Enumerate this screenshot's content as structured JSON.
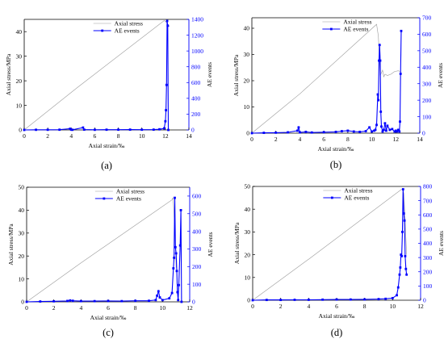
{
  "colors": {
    "axis_left": "#000000",
    "axis_right": "#0000ff",
    "stress_line": "#9a9a9a",
    "ae_series": "#0000ff"
  },
  "chart_data": [
    {
      "type": "line",
      "panel_label": "(a)",
      "xlabel": "Axial strain/‰",
      "ylabel_left": "Axial stress/MPa",
      "ylabel_right": "AE events",
      "xlim": [
        0,
        14
      ],
      "ylim_left": [
        0,
        45
      ],
      "ylim_right": [
        0,
        1400
      ],
      "x_ticks": [
        0,
        2,
        4,
        6,
        8,
        10,
        12,
        14
      ],
      "y_left_ticks": [
        0,
        10,
        20,
        30,
        40
      ],
      "y_right_ticks": [
        0,
        200,
        400,
        600,
        800,
        1000,
        1200,
        1400
      ],
      "legend": [
        "Axial stress",
        "AE events"
      ],
      "legend_position": "top-center",
      "series": [
        {
          "name": "Axial stress",
          "axis": "left",
          "marker": "none",
          "x": [
            0,
            4.5,
            11.9,
            12.1,
            12.25,
            12.35
          ],
          "y": [
            0,
            17.2,
            44.5,
            43.8,
            42.8,
            42.0
          ]
        },
        {
          "name": "AE events",
          "axis": "right",
          "marker": "square",
          "x": [
            0,
            1,
            2,
            3,
            3.9,
            4,
            4.1,
            5,
            5.1,
            6,
            7,
            8,
            9,
            10,
            11,
            11.5,
            11.9,
            12.0,
            12.05,
            12.1,
            12.15,
            12.2,
            12.25
          ],
          "y": [
            0,
            2,
            2,
            3,
            15,
            3,
            2,
            30,
            4,
            2,
            3,
            3,
            4,
            3,
            4,
            8,
            20,
            110,
            250,
            570,
            1380,
            1320,
            0
          ]
        }
      ]
    },
    {
      "type": "line",
      "panel_label": "(b)",
      "xlabel": "Axial strain/‰",
      "ylabel_left": "Axial stress/MPa",
      "ylabel_right": "AE events",
      "xlim": [
        0,
        14
      ],
      "ylim_left": [
        0,
        44
      ],
      "ylim_right": [
        0,
        700
      ],
      "x_ticks": [
        0,
        2,
        4,
        6,
        8,
        10,
        12,
        14
      ],
      "y_left_ticks": [
        0,
        10,
        20,
        30,
        40
      ],
      "y_right_ticks": [
        0,
        100,
        200,
        300,
        400,
        500,
        600,
        700
      ],
      "legend": [
        "Axial stress",
        "AE events"
      ],
      "legend_position": "top-center",
      "series": [
        {
          "name": "Axial stress",
          "axis": "left",
          "marker": "none",
          "x": [
            0,
            4,
            10.4,
            10.55,
            10.7,
            10.9,
            11.0,
            11.1,
            11.3,
            11.6,
            11.9,
            12.2,
            12.4
          ],
          "y": [
            0,
            15,
            41.5,
            37,
            22,
            24,
            21.5,
            22.5,
            22,
            22.5,
            23.5,
            23.8,
            23.5
          ]
        },
        {
          "name": "AE events",
          "axis": "right",
          "marker": "square",
          "x": [
            0,
            1,
            2,
            3,
            3.8,
            3.9,
            4.0,
            4.5,
            5,
            6,
            7,
            7.5,
            8,
            8.5,
            9,
            9.5,
            9.8,
            10.0,
            10.2,
            10.3,
            10.4,
            10.5,
            10.55,
            10.6,
            10.65,
            10.7,
            10.75,
            10.8,
            10.9,
            11.0,
            11.1,
            11.2,
            11.3,
            11.5,
            11.7,
            11.9,
            12.0,
            12.1,
            12.2,
            12.3,
            12.35,
            12.4,
            12.45
          ],
          "y": [
            0,
            2,
            3,
            5,
            15,
            35,
            5,
            8,
            4,
            6,
            8,
            12,
            15,
            10,
            8,
            12,
            35,
            10,
            15,
            20,
            50,
            235,
            200,
            440,
            535,
            440,
            130,
            40,
            10,
            20,
            60,
            15,
            45,
            20,
            25,
            10,
            15,
            10,
            20,
            10,
            70,
            360,
            620
          ]
        }
      ]
    },
    {
      "type": "line",
      "panel_label": "(c)",
      "xlabel": "Axial strain/‰",
      "ylabel_left": "Axial stress/MPa",
      "ylabel_right": "AE events",
      "xlim": [
        0,
        12
      ],
      "ylim_left": [
        0,
        50
      ],
      "ylim_right": [
        0,
        650
      ],
      "x_ticks": [
        0,
        2,
        4,
        6,
        8,
        10,
        12
      ],
      "y_left_ticks": [
        0,
        10,
        20,
        30,
        40,
        50
      ],
      "y_right_ticks": [
        0,
        100,
        200,
        300,
        400,
        500,
        600
      ],
      "legend": [
        "Axial stress",
        "AE events"
      ],
      "legend_position": "top-center",
      "series": [
        {
          "name": "Axial stress",
          "axis": "left",
          "marker": "none",
          "x": [
            0,
            4,
            10.7,
            10.75,
            10.8,
            10.9,
            11.0
          ],
          "y": [
            0,
            17,
            44.5,
            45.5,
            43,
            32,
            15
          ]
        },
        {
          "name": "AE events",
          "axis": "right",
          "marker": "square",
          "x": [
            0,
            1,
            2,
            3,
            3.2,
            3.4,
            4,
            5,
            6,
            7,
            8,
            9,
            9.5,
            9.6,
            9.7,
            9.8,
            10.0,
            10.5,
            10.7,
            10.8,
            10.85,
            10.9,
            10.95,
            11.0,
            11.05,
            11.1,
            11.15,
            11.2,
            11.3,
            11.35,
            11.4
          ],
          "y": [
            0,
            2,
            3,
            5,
            8,
            6,
            4,
            4,
            5,
            4,
            6,
            6,
            10,
            35,
            60,
            25,
            10,
            20,
            50,
            190,
            250,
            590,
            310,
            275,
            175,
            55,
            10,
            95,
            320,
            520,
            0
          ]
        }
      ]
    },
    {
      "type": "line",
      "panel_label": "(d)",
      "xlabel": "Axial strain/‰",
      "ylabel_left": "Axial stress/MPa",
      "ylabel_right": "AE events",
      "xlim": [
        0,
        12
      ],
      "ylim_left": [
        0,
        50
      ],
      "ylim_right": [
        0,
        800
      ],
      "x_ticks": [
        0,
        2,
        4,
        6,
        8,
        10,
        12
      ],
      "y_left_ticks": [
        0,
        10,
        20,
        30,
        40,
        50
      ],
      "y_right_ticks": [
        0,
        100,
        200,
        300,
        400,
        500,
        600,
        700,
        800
      ],
      "legend": [
        "Axial stress",
        "AE events"
      ],
      "legend_position": "top-center",
      "series": [
        {
          "name": "Axial stress",
          "axis": "left",
          "marker": "none",
          "x": [
            0,
            4,
            10.7,
            10.8,
            10.9,
            11.0
          ],
          "y": [
            0,
            18,
            49,
            47,
            35,
            20
          ]
        },
        {
          "name": "AE events",
          "axis": "right",
          "marker": "square",
          "x": [
            0,
            1,
            2,
            3,
            4,
            5,
            6,
            7,
            8,
            9,
            9.5,
            10.0,
            10.3,
            10.4,
            10.5,
            10.55,
            10.6,
            10.65,
            10.7,
            10.75,
            10.8,
            10.85,
            10.9,
            10.95,
            11.0
          ],
          "y": [
            0,
            2,
            2,
            3,
            3,
            4,
            5,
            5,
            6,
            8,
            10,
            15,
            35,
            90,
            180,
            230,
            320,
            310,
            480,
            780,
            610,
            560,
            310,
            220,
            180
          ]
        }
      ]
    }
  ]
}
